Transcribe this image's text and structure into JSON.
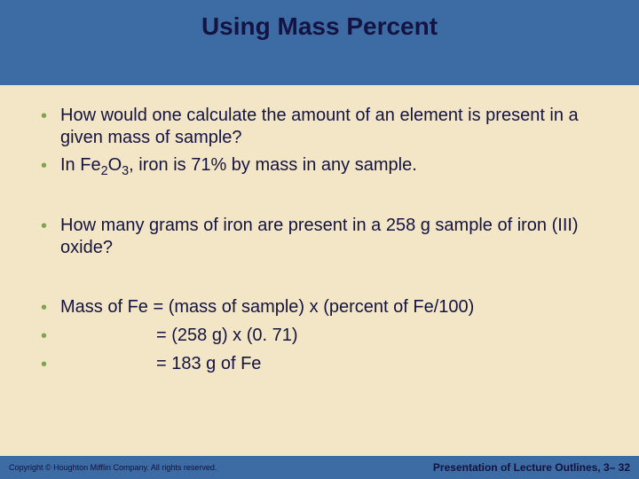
{
  "colors": {
    "header_bg": "#3d6ba4",
    "title_color": "#141342",
    "content_bg": "#f3e6c6",
    "bullet_color": "#7fa34e",
    "body_text": "#141342",
    "footer_bg": "#3d6ba4",
    "footer_text": "#12123b"
  },
  "title": "Using Mass Percent",
  "bullets": [
    {
      "type": "text",
      "value": "How would one calculate the amount of an element is present in a given mass of sample?"
    },
    {
      "type": "formula",
      "prefix": "In Fe",
      "sub1": "2",
      "mid1": "O",
      "sub2": "3",
      "suffix": ", iron is 71% by mass in any sample."
    },
    {
      "type": "gap",
      "size": "lg"
    },
    {
      "type": "text",
      "value": "How many grams of iron are present in a 258 g sample of iron (III) oxide?"
    },
    {
      "type": "gap",
      "size": "lg"
    },
    {
      "type": "text",
      "value": "Mass of Fe = (mass of sample) x (percent of Fe/100)"
    },
    {
      "type": "indented",
      "value": "= (258 g) x (0. 71)"
    },
    {
      "type": "indented",
      "value": "= 183 g of Fe"
    }
  ],
  "footer": {
    "left": "Copyright © Houghton Mifflin Company. All rights reserved.",
    "right_prefix": "Presentation of Lecture Outlines, ",
    "right_suffix": "3– 32"
  }
}
